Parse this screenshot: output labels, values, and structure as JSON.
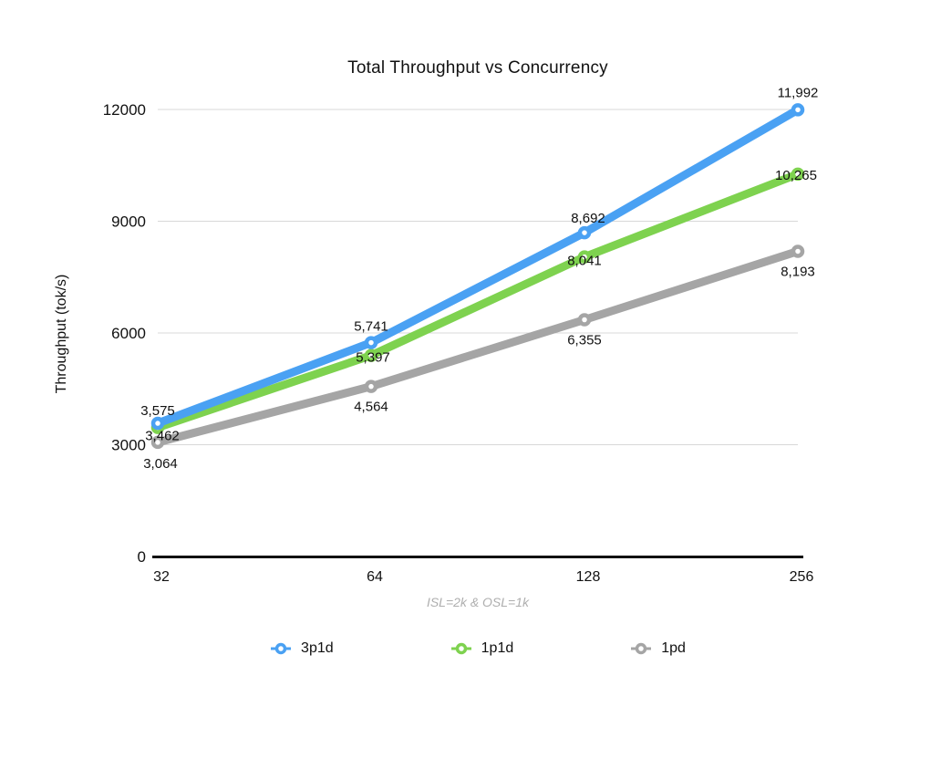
{
  "chart_data": {
    "type": "line",
    "title": "Total Throughput vs Concurrency",
    "ylabel": "Throughput (tok/s)",
    "xlabel": "",
    "footnote": "ISL=2k & OSL=1k",
    "categories": [
      "32",
      "64",
      "128",
      "256"
    ],
    "y_ticks": [
      {
        "value": 0,
        "label": "0"
      },
      {
        "value": 3000,
        "label": "3000"
      },
      {
        "value": 6000,
        "label": "6000"
      },
      {
        "value": 9000,
        "label": "9000"
      },
      {
        "value": 12000,
        "label": "12000"
      }
    ],
    "ylim": [
      0,
      12000
    ],
    "grid": true,
    "legend_position": "bottom",
    "colors": {
      "axis": "#111111",
      "gridline": "#d8d8d8",
      "tick_text": "#111111",
      "data_label_text": "#111111"
    },
    "series": [
      {
        "name": "3p1d",
        "color": "#4aa1f3",
        "values": [
          3575,
          5741,
          8692,
          11992
        ],
        "labels": [
          "3,575",
          "5,741",
          "8,692",
          "11,992"
        ]
      },
      {
        "name": "1p1d",
        "color": "#7ed24f",
        "values": [
          3462,
          5397,
          8041,
          10265
        ],
        "labels": [
          "3,462",
          "5,397",
          "8,041",
          "10,265"
        ]
      },
      {
        "name": "1pd",
        "color": "#a5a5a5",
        "values": [
          3064,
          4564,
          6355,
          8193
        ],
        "labels": [
          "3,064",
          "4,564",
          "6,355",
          "8,193"
        ]
      }
    ]
  }
}
